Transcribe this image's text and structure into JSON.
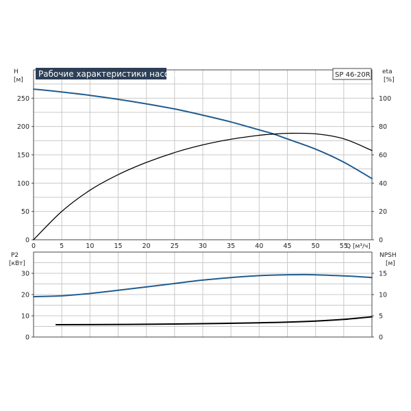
{
  "title": "Рабочие характеристики насоса",
  "model": "SP 46-20R",
  "colors": {
    "blue": "#1f5b8e",
    "black": "#000000",
    "title_bg": "#2c3f56",
    "grid": "#c8c8c8"
  },
  "chart_data": [
    {
      "name": "head-efficiency",
      "type": "line",
      "xlabel": "Q [м³/ч]",
      "xlim": [
        0,
        60
      ],
      "xticks": [
        "0",
        "5",
        "10",
        "15",
        "20",
        "25",
        "30",
        "35",
        "40",
        "45",
        "50",
        "55"
      ],
      "ylabel_left": [
        "H",
        "[м]"
      ],
      "ylim_left": [
        0,
        300
      ],
      "yticks_left": [
        "0",
        "50",
        "100",
        "150",
        "200",
        "250"
      ],
      "ylabel_right": [
        "eta",
        "[%]"
      ],
      "ylim_right": [
        0,
        120
      ],
      "yticks_right": [
        "0",
        "20",
        "40",
        "60",
        "80",
        "100"
      ],
      "grid": true,
      "series": [
        {
          "axis": "left",
          "color": "blue",
          "x": [
            0,
            4,
            10,
            15,
            20,
            25,
            30,
            35,
            40,
            42.5,
            45,
            50,
            55,
            60
          ],
          "y": [
            266,
            262,
            255,
            248,
            240,
            231,
            220,
            208,
            194,
            187,
            178,
            160,
            137,
            108
          ]
        },
        {
          "axis": "right",
          "color": "black",
          "x": [
            0,
            5,
            10,
            15,
            20,
            25,
            30,
            35,
            40,
            42.5,
            45,
            50,
            55,
            60
          ],
          "y": [
            0,
            20,
            35,
            46,
            54.6,
            61.6,
            67,
            71,
            73.8,
            74.6,
            75.2,
            74.8,
            71.3,
            63
          ]
        }
      ]
    },
    {
      "name": "power-npsh",
      "type": "line",
      "xlim": [
        0,
        60
      ],
      "ylabel_left": [
        "P2",
        "[кВт]"
      ],
      "ylim_left": [
        0,
        40
      ],
      "yticks_left": [
        "0",
        "10",
        "20",
        "30"
      ],
      "ylabel_right": [
        "NPSH",
        "[м]"
      ],
      "ylim_right": [
        0,
        20
      ],
      "yticks_right": [
        "0",
        "5",
        "10",
        "15"
      ],
      "grid": true,
      "series": [
        {
          "axis": "left",
          "color": "blue",
          "x": [
            0,
            5,
            10,
            15,
            20,
            25,
            30,
            35,
            40,
            45,
            48,
            50,
            55,
            60
          ],
          "y": [
            19,
            19.4,
            20.5,
            22,
            23.6,
            25.2,
            26.8,
            28,
            28.9,
            29.3,
            29.4,
            29.3,
            28.8,
            28
          ]
        },
        {
          "axis": "right",
          "color": "black",
          "x": [
            4,
            10,
            20,
            30,
            40,
            45,
            50,
            55,
            60
          ],
          "y": [
            2.9,
            2.92,
            3.0,
            3.15,
            3.35,
            3.5,
            3.75,
            4.15,
            4.75
          ]
        }
      ]
    }
  ]
}
